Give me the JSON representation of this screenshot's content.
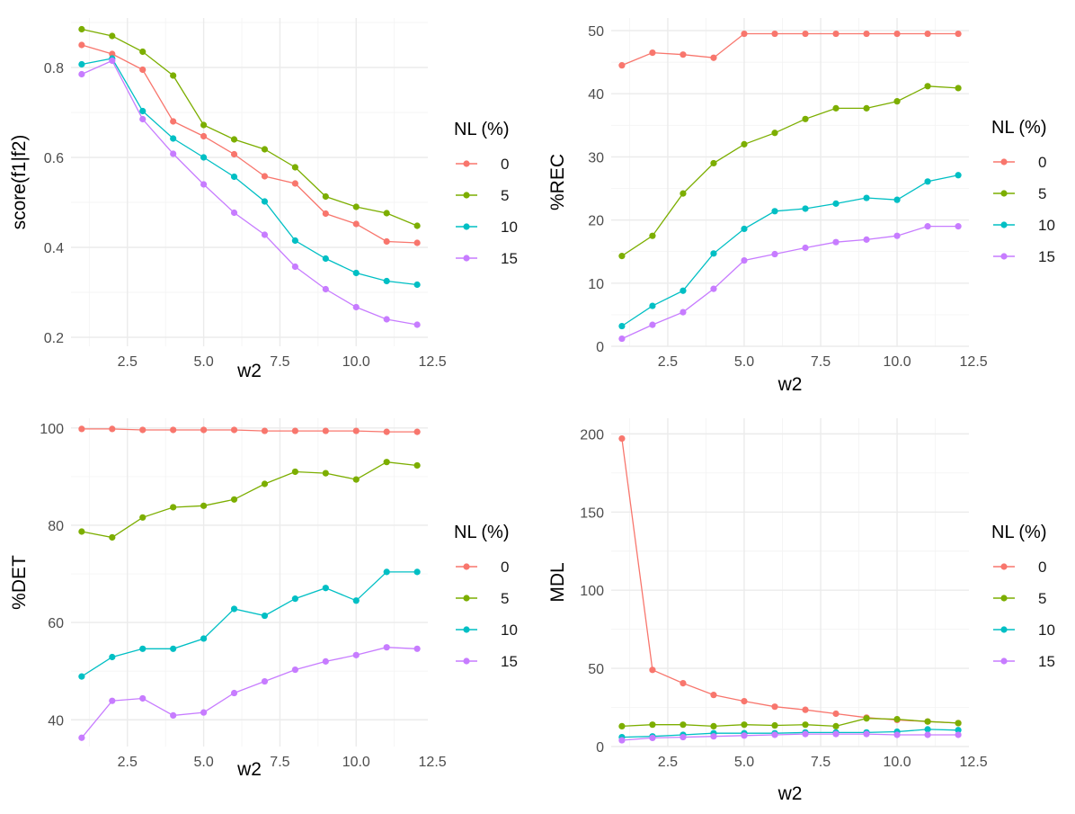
{
  "chart_data": [
    {
      "type": "line",
      "key": "score",
      "xlabel": "w2",
      "ylabel": "score(f1|f2)",
      "xlim": [
        0.65,
        12.35
      ],
      "ylim": [
        0.18,
        0.91
      ],
      "xticks": [
        2.5,
        5.0,
        7.5,
        10.0,
        12.5
      ],
      "xtick_labels": [
        "2.5",
        "5.0",
        "7.5",
        "10.0",
        "12.5"
      ],
      "yticks": [
        0.2,
        0.4,
        0.6,
        0.8
      ],
      "ytick_labels": [
        "0.2",
        "0.4",
        "0.6",
        "0.8"
      ],
      "legend": {
        "title": "NL (%)",
        "position": "right"
      },
      "x": [
        1,
        2,
        3,
        4,
        5,
        6,
        7,
        8,
        9,
        10,
        11,
        12
      ],
      "series": [
        {
          "name": "0",
          "color": "#F8766D",
          "values": [
            0.85,
            0.83,
            0.795,
            0.68,
            0.647,
            0.607,
            0.558,
            0.542,
            0.475,
            0.452,
            0.413,
            0.41
          ]
        },
        {
          "name": "5",
          "color": "#7CAE00",
          "values": [
            0.885,
            0.87,
            0.835,
            0.782,
            0.672,
            0.64,
            0.618,
            0.578,
            0.513,
            0.49,
            0.476,
            0.448
          ]
        },
        {
          "name": "10",
          "color": "#00BFC4",
          "values": [
            0.807,
            0.82,
            0.703,
            0.642,
            0.6,
            0.557,
            0.502,
            0.415,
            0.375,
            0.343,
            0.325,
            0.317
          ]
        },
        {
          "name": "15",
          "color": "#C77CFF",
          "values": [
            0.785,
            0.815,
            0.685,
            0.608,
            0.54,
            0.477,
            0.428,
            0.357,
            0.307,
            0.267,
            0.24,
            0.228
          ]
        }
      ]
    },
    {
      "type": "line",
      "key": "rec",
      "xlabel": "w2",
      "ylabel": "%REC",
      "xlim": [
        0.65,
        12.35
      ],
      "ylim": [
        0,
        52
      ],
      "xticks": [
        2.5,
        5.0,
        7.5,
        10.0,
        12.5
      ],
      "xtick_labels": [
        "2.5",
        "5.0",
        "7.5",
        "10.0",
        "12.5"
      ],
      "yticks": [
        0,
        10,
        20,
        30,
        40,
        50
      ],
      "ytick_labels": [
        "0",
        "10",
        "20",
        "30",
        "40",
        "50"
      ],
      "legend": {
        "title": "NL (%)",
        "position": "right"
      },
      "x": [
        1,
        2,
        3,
        4,
        5,
        6,
        7,
        8,
        9,
        10,
        11,
        12
      ],
      "series": [
        {
          "name": "0",
          "color": "#F8766D",
          "values": [
            44.5,
            46.5,
            46.2,
            45.7,
            49.5,
            49.5,
            49.5,
            49.5,
            49.5,
            49.5,
            49.5,
            49.5
          ]
        },
        {
          "name": "5",
          "color": "#7CAE00",
          "values": [
            14.3,
            17.5,
            24.2,
            29,
            32,
            33.8,
            36,
            37.7,
            37.7,
            38.8,
            41.2,
            40.9
          ]
        },
        {
          "name": "10",
          "color": "#00BFC4",
          "values": [
            3.2,
            6.4,
            8.8,
            14.7,
            18.6,
            21.4,
            21.8,
            22.6,
            23.5,
            23.2,
            26.1,
            27.1
          ]
        },
        {
          "name": "15",
          "color": "#C77CFF",
          "values": [
            1.2,
            3.4,
            5.4,
            9.1,
            13.6,
            14.6,
            15.6,
            16.5,
            16.9,
            17.5,
            19,
            19
          ]
        }
      ]
    },
    {
      "type": "line",
      "key": "det",
      "xlabel": "w2",
      "ylabel": "%DET",
      "xlim": [
        0.65,
        12.35
      ],
      "ylim": [
        34.5,
        102
      ],
      "xticks": [
        2.5,
        5.0,
        7.5,
        10.0,
        12.5
      ],
      "xtick_labels": [
        "2.5",
        "5.0",
        "7.5",
        "10.0",
        "12.5"
      ],
      "yticks": [
        40,
        60,
        80,
        100
      ],
      "ytick_labels": [
        "40",
        "60",
        "80",
        "100"
      ],
      "legend": {
        "title": "NL (%)",
        "position": "right"
      },
      "x": [
        1,
        2,
        3,
        4,
        5,
        6,
        7,
        8,
        9,
        10,
        11,
        12
      ],
      "series": [
        {
          "name": "0",
          "color": "#F8766D",
          "values": [
            99.8,
            99.8,
            99.6,
            99.6,
            99.6,
            99.6,
            99.4,
            99.4,
            99.4,
            99.4,
            99.2,
            99.2
          ]
        },
        {
          "name": "5",
          "color": "#7CAE00",
          "values": [
            78.7,
            77.5,
            81.6,
            83.7,
            84,
            85.3,
            88.5,
            91,
            90.7,
            89.4,
            93,
            92.3
          ]
        },
        {
          "name": "10",
          "color": "#00BFC4",
          "values": [
            48.9,
            52.9,
            54.6,
            54.6,
            56.7,
            62.8,
            61.4,
            64.9,
            67.1,
            64.5,
            70.4,
            70.4
          ]
        },
        {
          "name": "15",
          "color": "#C77CFF",
          "values": [
            36.3,
            43.9,
            44.4,
            40.9,
            41.5,
            45.5,
            47.9,
            50.3,
            52,
            53.3,
            54.9,
            54.6
          ]
        }
      ]
    },
    {
      "type": "line",
      "key": "mdl",
      "xlabel": "w2",
      "ylabel": "MDL",
      "xlim": [
        0.65,
        12.35
      ],
      "ylim": [
        0,
        210
      ],
      "xticks": [
        2.5,
        5.0,
        7.5,
        10.0,
        12.5
      ],
      "xtick_labels": [
        "2.5",
        "5.0",
        "7.5",
        "10.0",
        "12.5"
      ],
      "yticks": [
        0,
        50,
        100,
        150,
        200
      ],
      "ytick_labels": [
        "0",
        "50",
        "100",
        "150",
        "200"
      ],
      "legend": {
        "title": "NL (%)",
        "position": "right"
      },
      "x": [
        1,
        2,
        3,
        4,
        5,
        6,
        7,
        8,
        9,
        10,
        11,
        12
      ],
      "series": [
        {
          "name": "0",
          "color": "#F8766D",
          "values": [
            197,
            49,
            40.5,
            33,
            29,
            25.5,
            23.5,
            21,
            18.5,
            17,
            16,
            15
          ]
        },
        {
          "name": "5",
          "color": "#7CAE00",
          "values": [
            13,
            14,
            14,
            13,
            14,
            13.5,
            14,
            13,
            18,
            17.5,
            16,
            15
          ]
        },
        {
          "name": "10",
          "color": "#00BFC4",
          "values": [
            6,
            6.5,
            7.5,
            8.5,
            8.5,
            8.5,
            9,
            9,
            9,
            9.5,
            11,
            10.5
          ]
        },
        {
          "name": "15",
          "color": "#C77CFF",
          "values": [
            4,
            5.5,
            6,
            6.5,
            7,
            7.5,
            8,
            8,
            8,
            7.5,
            7.5,
            7.5
          ]
        }
      ]
    }
  ]
}
